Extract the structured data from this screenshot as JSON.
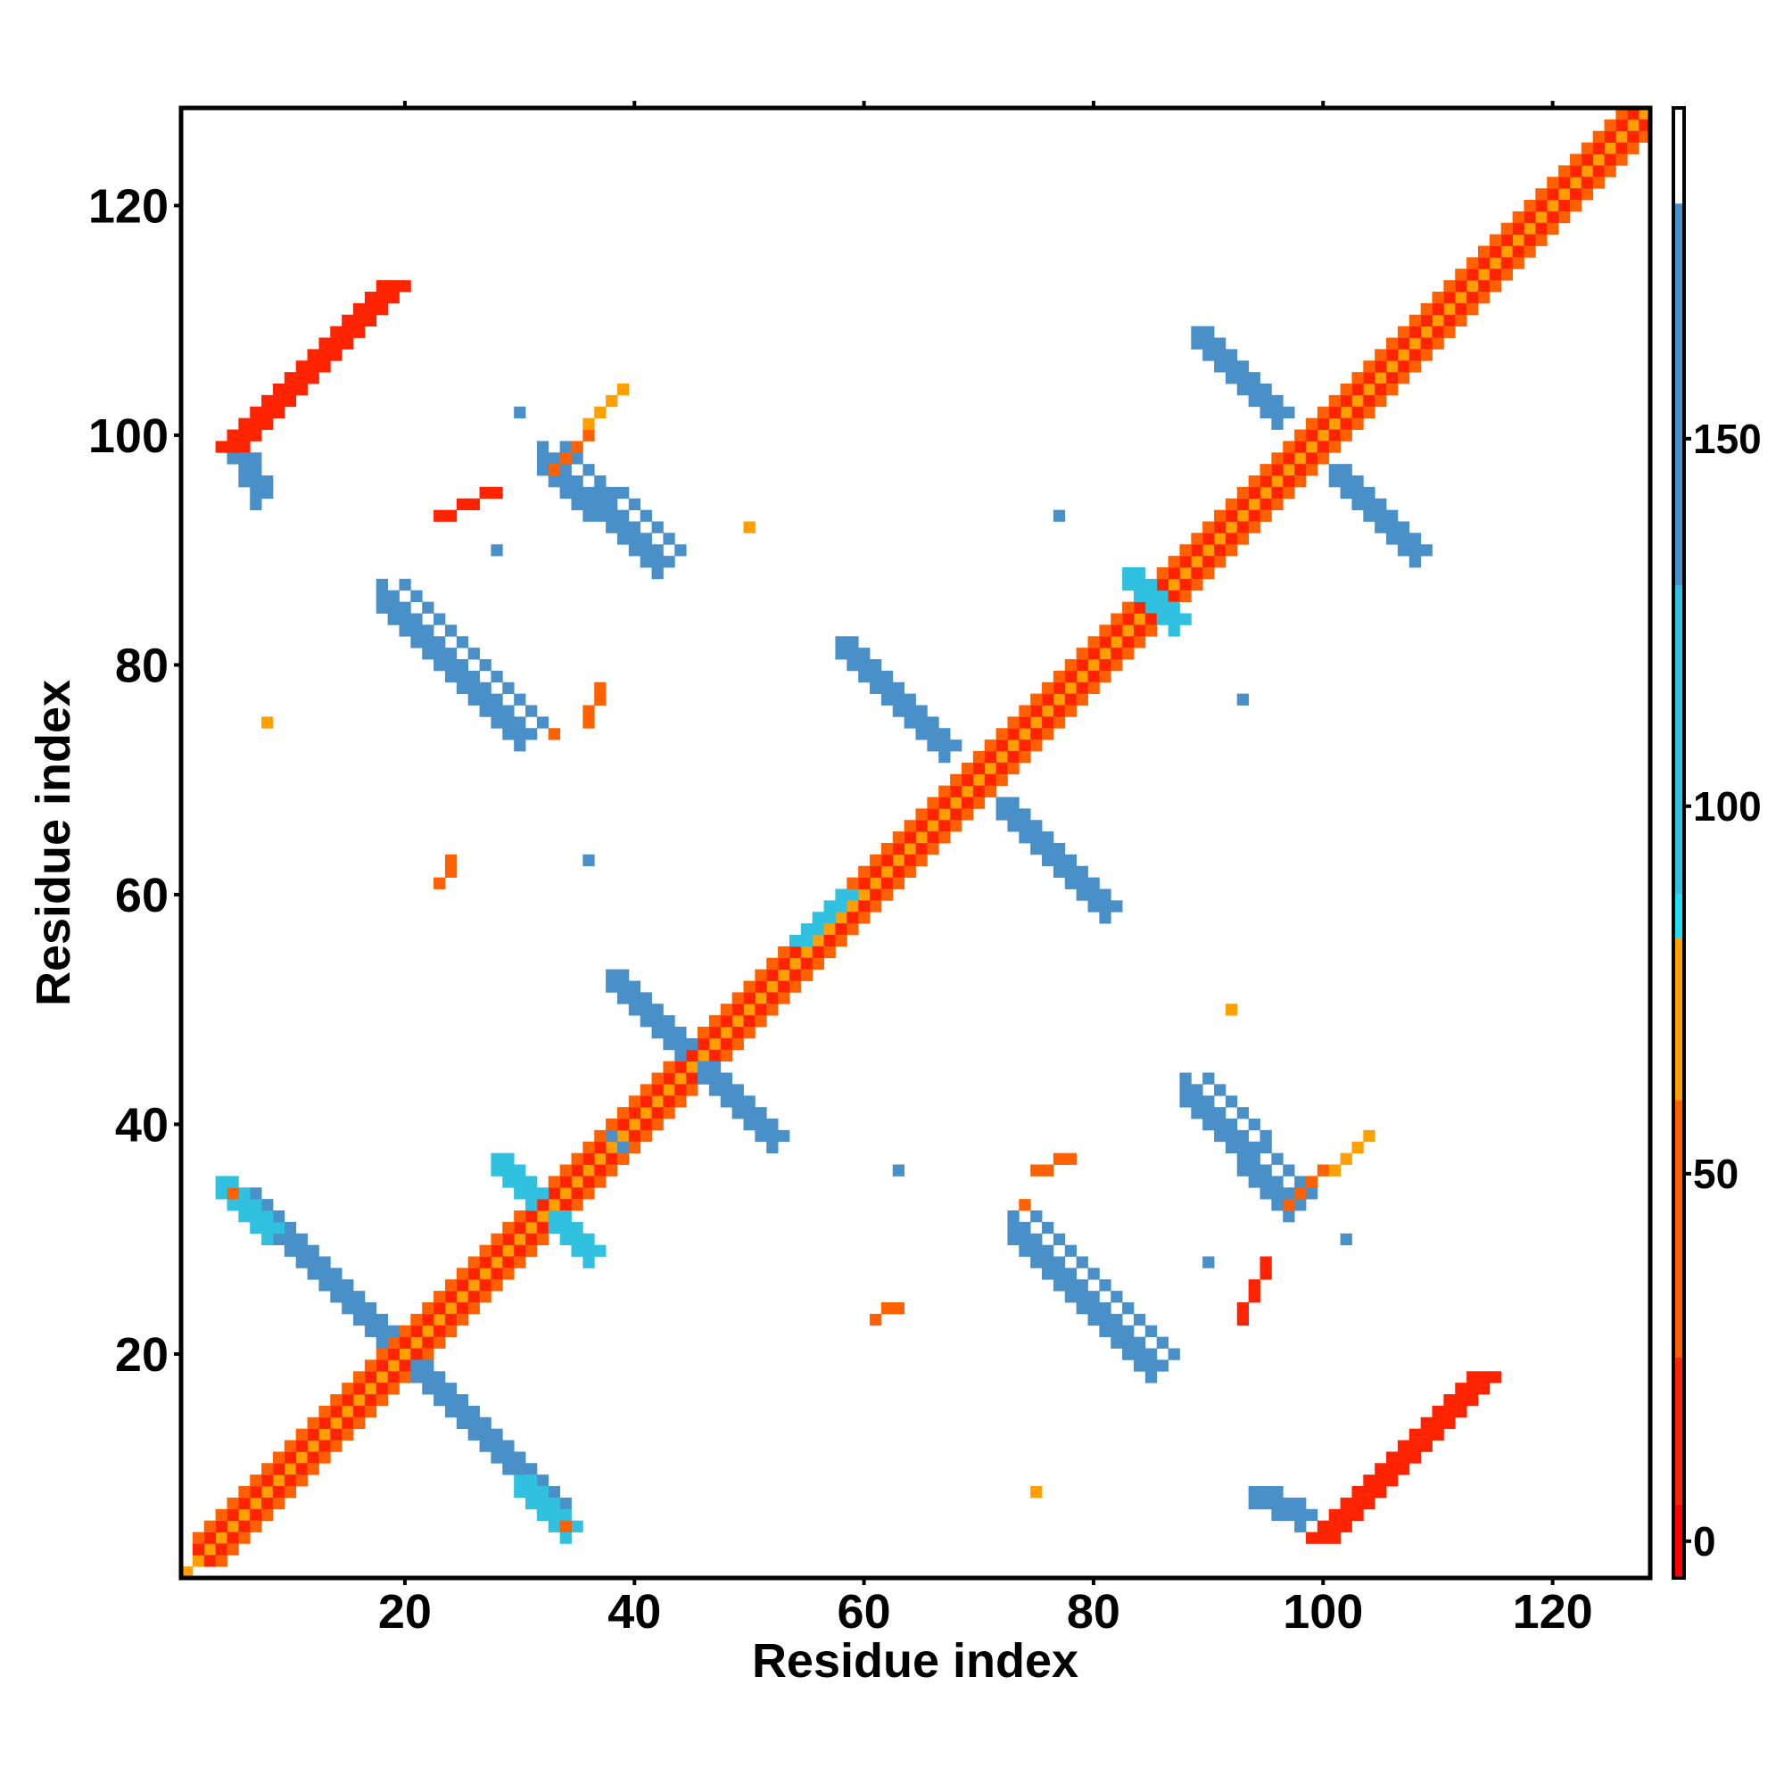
{
  "chart_data": {
    "type": "heatmap",
    "title": "",
    "xlabel": "Residue index",
    "ylabel": "Residue index",
    "xlim": [
      0.5,
      128.5
    ],
    "ylim": [
      0.5,
      128.5
    ],
    "x_ticks": [
      20,
      40,
      60,
      80,
      100,
      120
    ],
    "y_ticks": [
      20,
      40,
      60,
      80,
      100,
      120
    ],
    "colorbar": {
      "range": [
        -5,
        195
      ],
      "ticks": [
        0,
        50,
        100,
        150
      ],
      "bands": [
        {
          "from": -5,
          "to": 5,
          "color": "#ff0000"
        },
        {
          "from": 5,
          "to": 25,
          "color": "#ff2400"
        },
        {
          "from": 25,
          "to": 60,
          "color": "#ff6000"
        },
        {
          "from": 60,
          "to": 82,
          "color": "#ffa000"
        },
        {
          "from": 82,
          "to": 88,
          "color": "#20e0f0"
        },
        {
          "from": 88,
          "to": 130,
          "color": "#30c0e0"
        },
        {
          "from": 130,
          "to": 182,
          "color": "#4a90c8"
        },
        {
          "from": 182,
          "to": 195,
          "color": "#ffffff"
        }
      ]
    },
    "colors": {
      "red": "#f50c00",
      "red_orange": "#ff3a00",
      "orange": "#ff7000",
      "amber": "#ffa000",
      "cyan": "#19dced",
      "light_blue": "#2ec4e4",
      "steel_blue": "#4a8ec8",
      "slate_blue": "#5a88c0"
    },
    "segments": [
      {
        "x0": 1,
        "y0": 1,
        "x1": 128,
        "y1": 128,
        "w": 1,
        "value": 60,
        "note": "diagonal band"
      },
      {
        "x0": 2,
        "y0": 3,
        "x1": 127,
        "y1": 128,
        "w": 1,
        "value": 15
      },
      {
        "x0": 3,
        "y0": 2,
        "x1": 128,
        "y1": 127,
        "w": 1,
        "value": 15
      },
      {
        "x0": 2,
        "y0": 4,
        "x1": 126,
        "y1": 128,
        "w": 1,
        "value": 45
      },
      {
        "x0": 4,
        "y0": 2,
        "x1": 128,
        "y1": 126,
        "w": 1,
        "value": 45
      },
      {
        "x0": 18,
        "y0": 21,
        "x1": 6,
        "y1": 33,
        "w": 2,
        "value": 150
      },
      {
        "x0": 21,
        "y0": 18,
        "x1": 33,
        "y1": 6,
        "w": 2,
        "value": 150
      },
      {
        "x0": 8,
        "y0": 30,
        "x1": 4,
        "y1": 34,
        "w": 2,
        "value": 100
      },
      {
        "x0": 30,
        "y0": 8,
        "x1": 34,
        "y1": 4,
        "w": 2,
        "value": 100
      },
      {
        "x0": 33,
        "y0": 31,
        "x1": 36,
        "y1": 28,
        "w": 2,
        "value": 100
      },
      {
        "x0": 31,
        "y0": 33,
        "x1": 28,
        "y1": 36,
        "w": 2,
        "value": 100
      },
      {
        "x0": 44,
        "y0": 46,
        "x1": 38,
        "y1": 52,
        "w": 2,
        "value": 150
      },
      {
        "x0": 46,
        "y0": 44,
        "x1": 52,
        "y1": 38,
        "w": 2,
        "value": 150
      },
      {
        "x0": 54,
        "y0": 56,
        "x1": 58,
        "y1": 60,
        "w": 2,
        "value": 100
      },
      {
        "x0": 67,
        "y0": 72,
        "x1": 58,
        "y1": 81,
        "w": 2,
        "value": 155
      },
      {
        "x0": 72,
        "y0": 67,
        "x1": 81,
        "y1": 58,
        "w": 2,
        "value": 155
      },
      {
        "x0": 83,
        "y0": 87,
        "x1": 87,
        "y1": 83,
        "w": 2,
        "value": 100
      },
      {
        "x0": 96,
        "y0": 101,
        "x1": 89,
        "y1": 108,
        "w": 2,
        "value": 155
      },
      {
        "x0": 101,
        "y0": 96,
        "x1": 108,
        "y1": 89,
        "w": 2,
        "value": 155
      },
      {
        "x0": 18,
        "y0": 85,
        "x1": 30,
        "y1": 73,
        "w": 3,
        "value": 155
      },
      {
        "x0": 85,
        "y0": 18,
        "x1": 73,
        "y1": 30,
        "w": 3,
        "value": 155
      },
      {
        "x0": 32,
        "y0": 97,
        "x1": 42,
        "y1": 88,
        "w": 3,
        "value": 150
      },
      {
        "x0": 97,
        "y0": 32,
        "x1": 88,
        "y1": 42,
        "w": 3,
        "value": 150
      },
      {
        "x0": 5,
        "y0": 98,
        "x1": 7,
        "y1": 94,
        "w": 2,
        "value": 150
      },
      {
        "x0": 98,
        "y0": 5,
        "x1": 94,
        "y1": 7,
        "w": 2,
        "value": 150
      },
      {
        "x0": 4,
        "y0": 99,
        "x1": 18,
        "y1": 113,
        "w": 3,
        "value": 12
      },
      {
        "x0": 99,
        "y0": 4,
        "x1": 113,
        "y1": 18,
        "w": 3,
        "value": 12
      },
      {
        "x0": 33,
        "y0": 97,
        "x1": 36,
        "y1": 100,
        "w": 1,
        "value": 50
      },
      {
        "x0": 97,
        "y0": 33,
        "x1": 100,
        "y1": 36,
        "w": 1,
        "value": 50
      },
      {
        "x0": 36,
        "y0": 101,
        "x1": 39,
        "y1": 104,
        "w": 1,
        "value": 60
      },
      {
        "x0": 101,
        "y0": 36,
        "x1": 104,
        "y1": 39,
        "w": 1,
        "value": 60
      },
      {
        "x0": 23,
        "y0": 93,
        "x1": 28,
        "y1": 95,
        "w": 1,
        "value": 15
      },
      {
        "x0": 93,
        "y0": 23,
        "x1": 95,
        "y1": 28,
        "w": 1,
        "value": 15
      },
      {
        "x0": 36,
        "y0": 75,
        "x1": 37,
        "y1": 78,
        "w": 1,
        "value": 35
      },
      {
        "x0": 75,
        "y0": 36,
        "x1": 78,
        "y1": 37,
        "w": 1,
        "value": 35
      },
      {
        "x0": 23,
        "y0": 61,
        "x1": 24,
        "y1": 62,
        "w": 1,
        "value": 35
      },
      {
        "x0": 61,
        "y0": 23,
        "x1": 62,
        "y1": 24,
        "w": 1,
        "value": 35
      }
    ],
    "points": [
      {
        "x": 8,
        "y": 75,
        "value": 70
      },
      {
        "x": 75,
        "y": 8,
        "value": 70
      },
      {
        "x": 50,
        "y": 92,
        "value": 70
      },
      {
        "x": 92,
        "y": 50,
        "value": 70
      },
      {
        "x": 34,
        "y": 5,
        "value": 50
      },
      {
        "x": 5,
        "y": 34,
        "value": 50
      },
      {
        "x": 36,
        "y": 63,
        "value": 150
      },
      {
        "x": 63,
        "y": 36,
        "value": 150
      },
      {
        "x": 93,
        "y": 77,
        "value": 150
      },
      {
        "x": 77,
        "y": 93,
        "value": 150
      },
      {
        "x": 28,
        "y": 90,
        "value": 150
      },
      {
        "x": 90,
        "y": 28,
        "value": 150
      },
      {
        "x": 30,
        "y": 102,
        "value": 150
      },
      {
        "x": 102,
        "y": 30,
        "value": 150
      },
      {
        "x": 39,
        "y": 38,
        "value": 150
      },
      {
        "x": 38,
        "y": 39,
        "value": 150
      },
      {
        "x": 63,
        "y": 24,
        "value": 35
      },
      {
        "x": 24,
        "y": 63,
        "value": 35
      },
      {
        "x": 33,
        "y": 74,
        "value": 35
      },
      {
        "x": 74,
        "y": 33,
        "value": 35
      }
    ]
  }
}
